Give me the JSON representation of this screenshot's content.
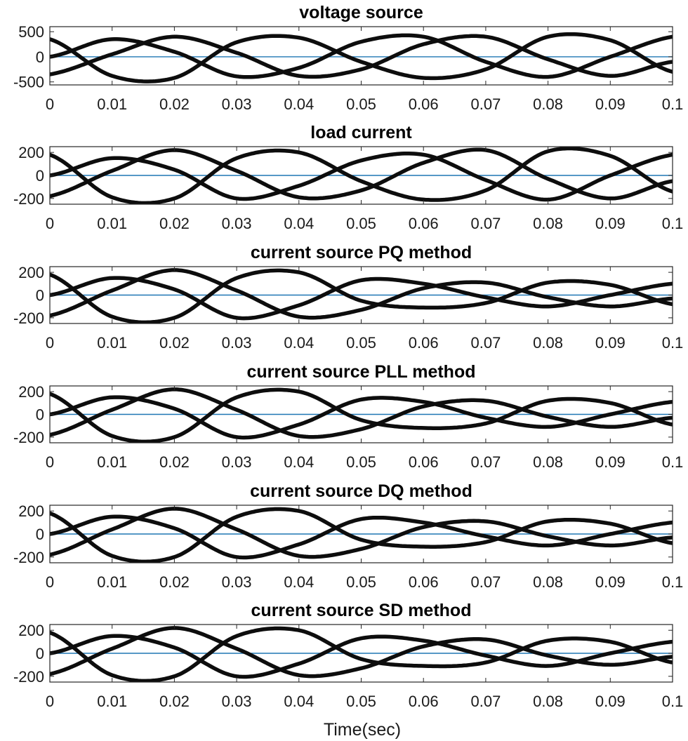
{
  "figure": {
    "xlabel": "Time(sec)",
    "colors": {
      "wave": "#0d0d0d",
      "zero_line": "#1f77b4",
      "axes": "#262626",
      "background": "#ffffff"
    }
  },
  "chart_data": [
    {
      "type": "line",
      "title": "voltage source",
      "xlabel": "",
      "ylabel": "",
      "xlim": [
        0,
        0.1
      ],
      "ylim": [
        -560,
        600
      ],
      "xticks": [
        0,
        0.01,
        0.02,
        0.03,
        0.04,
        0.05,
        0.06,
        0.07,
        0.08,
        0.09,
        0.1
      ],
      "xtick_labels": [
        "0",
        "0.01",
        "0.02",
        "0.03",
        "0.04",
        "0.05",
        "0.06",
        "0.07",
        "0.08",
        "0.09",
        "0.1"
      ],
      "yticks": [
        -500,
        0,
        500
      ],
      "ytick_labels": [
        "-500",
        "0",
        "500"
      ],
      "grid": false,
      "reference_line": 0,
      "series": [
        {
          "x": [
            0,
            0.01,
            0.02,
            0.03,
            0.04,
            0.05,
            0.06,
            0.07,
            0.08,
            0.09,
            0.1
          ],
          "y": [
            0,
            350,
            100,
            -390,
            -220,
            300,
            400,
            -100,
            -400,
            0,
            400
          ]
        },
        {
          "x": [
            0,
            0.01,
            0.02,
            0.03,
            0.04,
            0.05,
            0.06,
            0.07,
            0.08,
            0.09,
            0.1
          ],
          "y": [
            -350,
            50,
            400,
            80,
            -380,
            -250,
            250,
            400,
            -50,
            -380,
            -100
          ]
        },
        {
          "x": [
            0,
            0.01,
            0.02,
            0.03,
            0.04,
            0.05,
            0.06,
            0.07,
            0.08,
            0.09,
            0.1
          ],
          "y": [
            350,
            -380,
            -420,
            290,
            380,
            -100,
            -420,
            -250,
            400,
            330,
            -300
          ]
        }
      ]
    },
    {
      "type": "line",
      "title": "load current",
      "xlabel": "",
      "ylabel": "",
      "xlim": [
        0,
        0.1
      ],
      "ylim": [
        -250,
        250
      ],
      "xticks": [
        0,
        0.01,
        0.02,
        0.03,
        0.04,
        0.05,
        0.06,
        0.07,
        0.08,
        0.09,
        0.1
      ],
      "xtick_labels": [
        "0",
        "0.01",
        "0.02",
        "0.03",
        "0.04",
        "0.05",
        "0.06",
        "0.07",
        "0.08",
        "0.09",
        "0.1"
      ],
      "yticks": [
        -200,
        0,
        200
      ],
      "ytick_labels": [
        "-200",
        "0",
        "200"
      ],
      "grid": false,
      "reference_line": 0,
      "series": [
        {
          "x": [
            0,
            0.01,
            0.02,
            0.03,
            0.04,
            0.05,
            0.06,
            0.07,
            0.08,
            0.09,
            0.1
          ],
          "y": [
            0,
            150,
            50,
            -200,
            -90,
            130,
            180,
            -40,
            -210,
            0,
            180
          ]
        },
        {
          "x": [
            0,
            0.01,
            0.02,
            0.03,
            0.04,
            0.05,
            0.06,
            0.07,
            0.08,
            0.09,
            0.1
          ],
          "y": [
            -180,
            40,
            220,
            40,
            -190,
            -130,
            110,
            220,
            -30,
            -200,
            -50
          ]
        },
        {
          "x": [
            0,
            0.01,
            0.02,
            0.03,
            0.04,
            0.05,
            0.06,
            0.07,
            0.08,
            0.09,
            0.1
          ],
          "y": [
            180,
            -190,
            -200,
            150,
            200,
            -50,
            -210,
            -130,
            210,
            170,
            -140
          ]
        }
      ]
    },
    {
      "type": "line",
      "title": "current source PQ method",
      "xlabel": "",
      "ylabel": "",
      "xlim": [
        0,
        0.1
      ],
      "ylim": [
        -250,
        250
      ],
      "xticks": [
        0,
        0.01,
        0.02,
        0.03,
        0.04,
        0.05,
        0.06,
        0.07,
        0.08,
        0.09,
        0.1
      ],
      "xtick_labels": [
        "0",
        "0.01",
        "0.02",
        "0.03",
        "0.04",
        "0.05",
        "0.06",
        "0.07",
        "0.08",
        "0.09",
        "0.1"
      ],
      "yticks": [
        -200,
        0,
        200
      ],
      "ytick_labels": [
        "-200",
        "0",
        "200"
      ],
      "grid": false,
      "reference_line": 0,
      "series": [
        {
          "x": [
            0,
            0.01,
            0.02,
            0.03,
            0.04,
            0.05,
            0.06,
            0.07,
            0.08,
            0.09,
            0.1
          ],
          "y": [
            0,
            150,
            50,
            -200,
            -90,
            130,
            100,
            -20,
            -100,
            0,
            100
          ]
        },
        {
          "x": [
            0,
            0.01,
            0.02,
            0.03,
            0.04,
            0.05,
            0.06,
            0.07,
            0.08,
            0.09,
            0.1
          ],
          "y": [
            -180,
            40,
            220,
            40,
            -190,
            -130,
            60,
            110,
            -20,
            -100,
            -30
          ]
        },
        {
          "x": [
            0,
            0.01,
            0.02,
            0.03,
            0.04,
            0.05,
            0.06,
            0.07,
            0.08,
            0.09,
            0.1
          ],
          "y": [
            180,
            -190,
            -200,
            150,
            200,
            -50,
            -110,
            -70,
            110,
            90,
            -80
          ]
        }
      ]
    },
    {
      "type": "line",
      "title": "current source PLL method",
      "xlabel": "",
      "ylabel": "",
      "xlim": [
        0,
        0.1
      ],
      "ylim": [
        -250,
        250
      ],
      "xticks": [
        0,
        0.01,
        0.02,
        0.03,
        0.04,
        0.05,
        0.06,
        0.07,
        0.08,
        0.09,
        0.1
      ],
      "xtick_labels": [
        "0",
        "0.01",
        "0.02",
        "0.03",
        "0.04",
        "0.05",
        "0.06",
        "0.07",
        "0.08",
        "0.09",
        "0.1"
      ],
      "yticks": [
        -200,
        0,
        200
      ],
      "ytick_labels": [
        "-200",
        "0",
        "200"
      ],
      "grid": false,
      "reference_line": 0,
      "series": [
        {
          "x": [
            0,
            0.01,
            0.02,
            0.03,
            0.04,
            0.05,
            0.06,
            0.07,
            0.08,
            0.09,
            0.1
          ],
          "y": [
            0,
            150,
            50,
            -200,
            -90,
            130,
            110,
            -30,
            -110,
            0,
            110
          ]
        },
        {
          "x": [
            0,
            0.01,
            0.02,
            0.03,
            0.04,
            0.05,
            0.06,
            0.07,
            0.08,
            0.09,
            0.1
          ],
          "y": [
            -180,
            40,
            220,
            40,
            -190,
            -130,
            70,
            120,
            -20,
            -110,
            -30
          ]
        },
        {
          "x": [
            0,
            0.01,
            0.02,
            0.03,
            0.04,
            0.05,
            0.06,
            0.07,
            0.08,
            0.09,
            0.1
          ],
          "y": [
            180,
            -190,
            -200,
            150,
            200,
            -50,
            -120,
            -80,
            120,
            100,
            -90
          ]
        }
      ]
    },
    {
      "type": "line",
      "title": "current source DQ method",
      "xlabel": "",
      "ylabel": "",
      "xlim": [
        0,
        0.1
      ],
      "ylim": [
        -250,
        250
      ],
      "xticks": [
        0,
        0.01,
        0.02,
        0.03,
        0.04,
        0.05,
        0.06,
        0.07,
        0.08,
        0.09,
        0.1
      ],
      "xtick_labels": [
        "0",
        "0.01",
        "0.02",
        "0.03",
        "0.04",
        "0.05",
        "0.06",
        "0.07",
        "0.08",
        "0.09",
        "0.1"
      ],
      "yticks": [
        -200,
        0,
        200
      ],
      "ytick_labels": [
        "-200",
        "0",
        "200"
      ],
      "grid": false,
      "reference_line": 0,
      "series": [
        {
          "x": [
            0,
            0.01,
            0.02,
            0.03,
            0.04,
            0.05,
            0.06,
            0.07,
            0.08,
            0.09,
            0.1
          ],
          "y": [
            0,
            150,
            50,
            -200,
            -90,
            130,
            100,
            -20,
            -100,
            0,
            100
          ]
        },
        {
          "x": [
            0,
            0.01,
            0.02,
            0.03,
            0.04,
            0.05,
            0.06,
            0.07,
            0.08,
            0.09,
            0.1
          ],
          "y": [
            -180,
            40,
            220,
            40,
            -190,
            -130,
            60,
            110,
            -20,
            -100,
            -30
          ]
        },
        {
          "x": [
            0,
            0.01,
            0.02,
            0.03,
            0.04,
            0.05,
            0.06,
            0.07,
            0.08,
            0.09,
            0.1
          ],
          "y": [
            180,
            -190,
            -200,
            150,
            200,
            -50,
            -110,
            -70,
            110,
            90,
            -80
          ]
        }
      ]
    },
    {
      "type": "line",
      "title": "current source SD method",
      "xlabel": "Time(sec)",
      "ylabel": "",
      "xlim": [
        0,
        0.1
      ],
      "ylim": [
        -250,
        250
      ],
      "xticks": [
        0,
        0.01,
        0.02,
        0.03,
        0.04,
        0.05,
        0.06,
        0.07,
        0.08,
        0.09,
        0.1
      ],
      "xtick_labels": [
        "0",
        "0.01",
        "0.02",
        "0.03",
        "0.04",
        "0.05",
        "0.06",
        "0.07",
        "0.08",
        "0.09",
        "0.1"
      ],
      "yticks": [
        -200,
        0,
        200
      ],
      "ytick_labels": [
        "-200",
        "0",
        "200"
      ],
      "grid": false,
      "reference_line": 0,
      "series": [
        {
          "x": [
            0,
            0.01,
            0.02,
            0.03,
            0.04,
            0.05,
            0.06,
            0.07,
            0.08,
            0.09,
            0.1
          ],
          "y": [
            0,
            150,
            50,
            -200,
            -90,
            130,
            110,
            -20,
            -110,
            0,
            100
          ]
        },
        {
          "x": [
            0,
            0.01,
            0.02,
            0.03,
            0.04,
            0.05,
            0.06,
            0.07,
            0.08,
            0.09,
            0.1
          ],
          "y": [
            -180,
            40,
            220,
            40,
            -190,
            -130,
            60,
            120,
            -20,
            -100,
            -30
          ]
        },
        {
          "x": [
            0,
            0.01,
            0.02,
            0.03,
            0.04,
            0.05,
            0.06,
            0.07,
            0.08,
            0.09,
            0.1
          ],
          "y": [
            180,
            -190,
            -200,
            150,
            200,
            -50,
            -110,
            -80,
            110,
            100,
            -80
          ]
        }
      ]
    }
  ]
}
